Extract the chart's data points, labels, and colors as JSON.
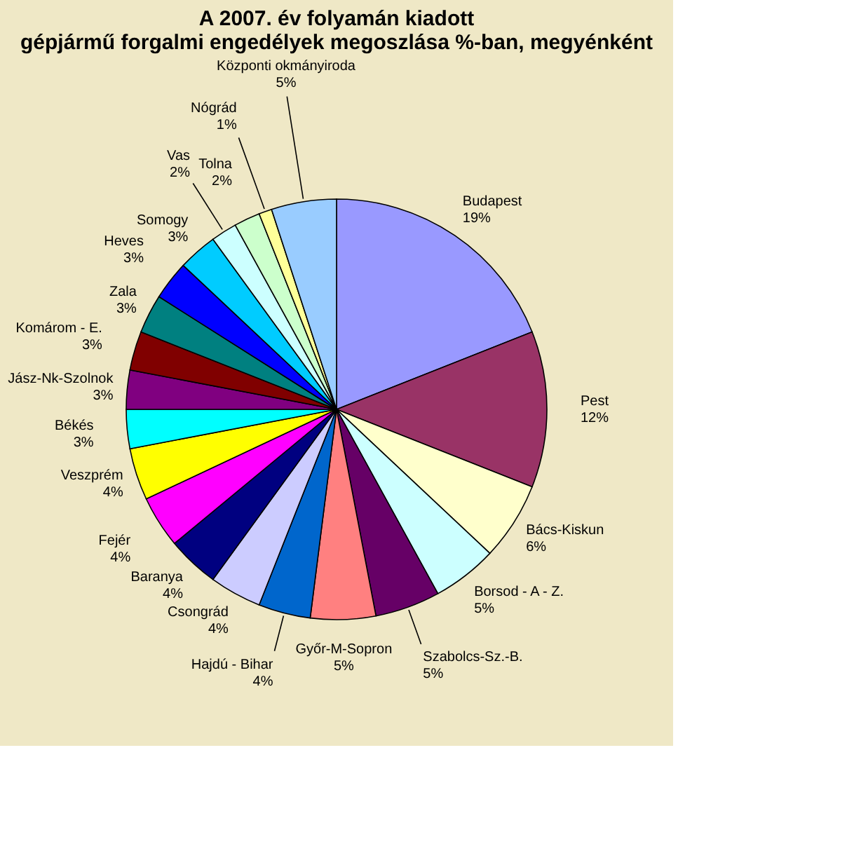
{
  "chart_data": {
    "type": "pie",
    "title": [
      "A  2007. év folyamán kiadott",
      "gépjármű forgalmi engedélyek megoszlása %-ban, megyénként"
    ],
    "categories": [
      "Budapest",
      "Pest",
      "Bács-Kiskun",
      "Borsod - A - Z.",
      "Szabolcs-Sz.-B.",
      "Győr-M-Sopron",
      "Hajdú - Bihar",
      "Csongrád",
      "Baranya",
      "Fejér",
      "Veszprém",
      "Békés",
      "Jász-Nk-Szolnok",
      "Komárom - E.",
      "Zala",
      "Heves",
      "Somogy",
      "Vas",
      "Tolna",
      "Nógrád",
      "Központi okmányiroda"
    ],
    "values": [
      19,
      12,
      6,
      5,
      5,
      5,
      4,
      4,
      4,
      4,
      4,
      3,
      3,
      3,
      3,
      3,
      3,
      2,
      2,
      1,
      5
    ],
    "value_labels": [
      "19%",
      "12%",
      "6%",
      "5%",
      "5%",
      "5%",
      "4%",
      "4%",
      "4%",
      "4%",
      "4%",
      "3%",
      "3%",
      "3%",
      "3%",
      "3%",
      "3%",
      "2%",
      "2%",
      "1%",
      "5%"
    ],
    "colors": [
      "#9999ff",
      "#993366",
      "#ffffcc",
      "#ccffff",
      "#660066",
      "#ff8080",
      "#0066cc",
      "#ccccff",
      "#000080",
      "#ff00ff",
      "#ffff00",
      "#00ffff",
      "#800080",
      "#800000",
      "#008080",
      "#0000ff",
      "#00ccff",
      "#ccffff",
      "#ccffcc",
      "#ffff99",
      "#99ccff"
    ],
    "legend": false
  }
}
